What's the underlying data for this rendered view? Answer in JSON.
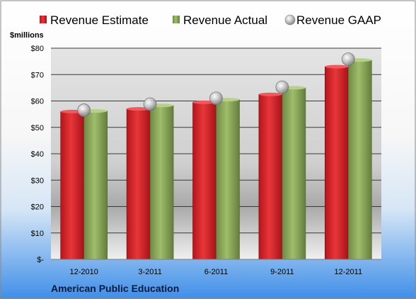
{
  "chart_data": {
    "type": "bar",
    "title": "American Public Education",
    "ylabel": "$millions",
    "xlabel": "",
    "categories": [
      "12-2010",
      "3-2011",
      "6-2011",
      "9-2011",
      "12-2011"
    ],
    "ylim": [
      0,
      80
    ],
    "yticks": [
      0,
      10,
      20,
      30,
      40,
      50,
      60,
      70,
      80
    ],
    "ytick_labels": [
      "$-",
      "$10",
      "$20",
      "$30",
      "$40",
      "$50",
      "$60",
      "$70",
      "$80"
    ],
    "legend_position": "top",
    "grid": true,
    "series": [
      {
        "name": "Revenue Estimate",
        "kind": "bar",
        "color": "#d9262b",
        "values": [
          56.0,
          57.0,
          59.5,
          62.5,
          73.0
        ]
      },
      {
        "name": "Revenue Actual",
        "kind": "bar",
        "color": "#8ba85a",
        "values": [
          56.2,
          58.3,
          60.5,
          65.0,
          75.5
        ]
      },
      {
        "name": "Revenue GAAP",
        "kind": "marker",
        "color": "#a9a9ab",
        "values": [
          56.5,
          58.8,
          61.0,
          65.2,
          75.8
        ]
      }
    ]
  }
}
